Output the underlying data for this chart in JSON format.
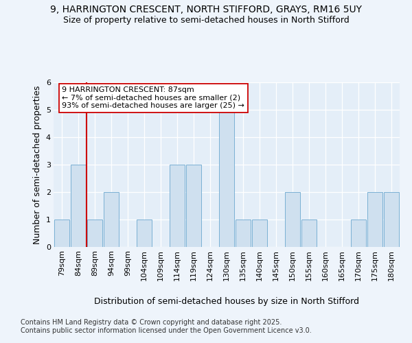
{
  "title_line1": "9, HARRINGTON CRESCENT, NORTH STIFFORD, GRAYS, RM16 5UY",
  "title_line2": "Size of property relative to semi-detached houses in North Stifford",
  "xlabel": "Distribution of semi-detached houses by size in North Stifford",
  "ylabel": "Number of semi-detached properties",
  "categories": [
    "79sqm",
    "84sqm",
    "89sqm",
    "94sqm",
    "99sqm",
    "104sqm",
    "109sqm",
    "114sqm",
    "119sqm",
    "124sqm",
    "130sqm",
    "135sqm",
    "140sqm",
    "145sqm",
    "150sqm",
    "155sqm",
    "160sqm",
    "165sqm",
    "170sqm",
    "175sqm",
    "180sqm"
  ],
  "values": [
    1,
    3,
    1,
    2,
    0,
    1,
    0,
    3,
    3,
    0,
    5,
    1,
    1,
    0,
    2,
    1,
    0,
    0,
    1,
    2,
    2
  ],
  "highlight_index": 2,
  "bar_color": "#cfe0ef",
  "bar_edge_color": "#7ab0d4",
  "highlight_line_color": "#cc0000",
  "annotation_text": "9 HARRINGTON CRESCENT: 87sqm\n← 7% of semi-detached houses are smaller (2)\n93% of semi-detached houses are larger (25) →",
  "annotation_box_color": "white",
  "annotation_box_edge_color": "#cc0000",
  "ylim": [
    0,
    6
  ],
  "yticks": [
    0,
    1,
    2,
    3,
    4,
    5,
    6
  ],
  "footer_text": "Contains HM Land Registry data © Crown copyright and database right 2025.\nContains public sector information licensed under the Open Government Licence v3.0.",
  "bg_color": "#eef4fb",
  "plot_bg_color": "#e4eef8",
  "grid_color": "#ffffff",
  "title_fontsize": 10,
  "subtitle_fontsize": 9,
  "axis_label_fontsize": 9,
  "tick_fontsize": 8,
  "annotation_fontsize": 8,
  "footer_fontsize": 7
}
